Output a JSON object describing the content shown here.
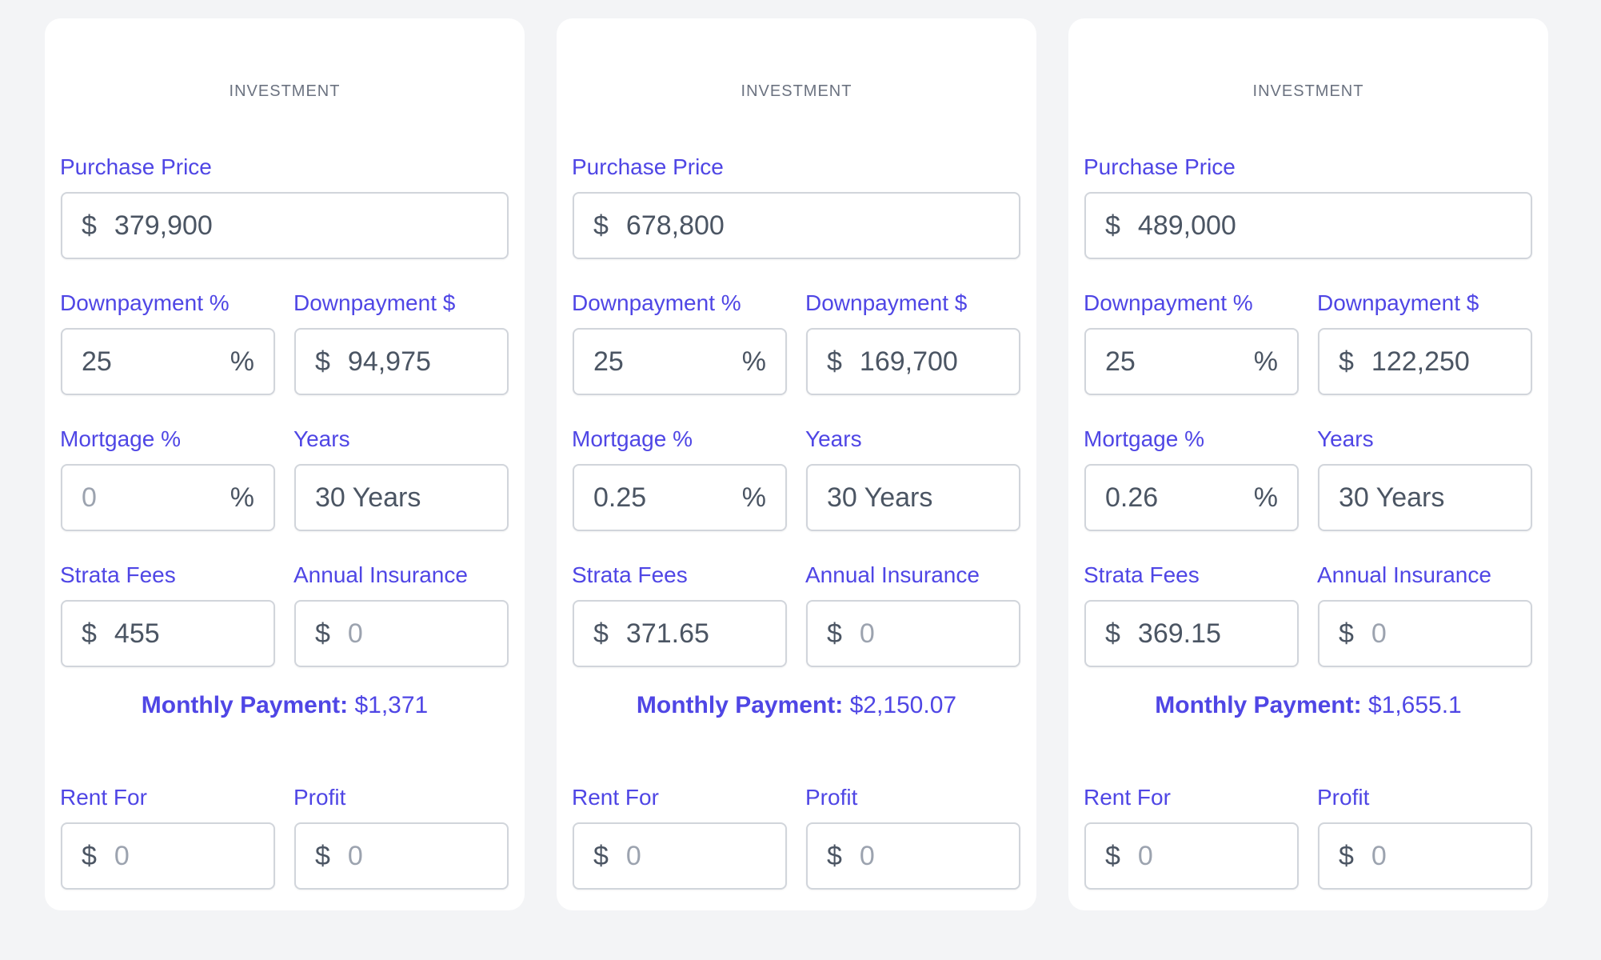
{
  "cards": [
    {
      "title": "INVESTMENT",
      "labels": {
        "purchase_price": "Purchase Price",
        "down_pct": "Downpayment %",
        "down_amt": "Downpayment $",
        "mortgage_pct": "Mortgage %",
        "years": "Years",
        "strata": "Strata Fees",
        "insurance": "Annual Insurance",
        "monthly": "Monthly Payment:",
        "rent": "Rent For",
        "profit": "Profit"
      },
      "symbols": {
        "currency": "$",
        "percent": "%"
      },
      "values": {
        "purchase_price": "379,900",
        "down_pct": "25",
        "down_amt": "94,975",
        "mortgage_pct": "0",
        "years": "30 Years",
        "strata": "455",
        "insurance": "0",
        "monthly": "$1,371",
        "rent": "0",
        "profit": "0"
      }
    },
    {
      "title": "INVESTMENT",
      "labels": {
        "purchase_price": "Purchase Price",
        "down_pct": "Downpayment %",
        "down_amt": "Downpayment $",
        "mortgage_pct": "Mortgage %",
        "years": "Years",
        "strata": "Strata Fees",
        "insurance": "Annual Insurance",
        "monthly": "Monthly Payment:",
        "rent": "Rent For",
        "profit": "Profit"
      },
      "symbols": {
        "currency": "$",
        "percent": "%"
      },
      "values": {
        "purchase_price": "678,800",
        "down_pct": "25",
        "down_amt": "169,700",
        "mortgage_pct": "0.25",
        "years": "30 Years",
        "strata": "371.65",
        "insurance": "0",
        "monthly": "$2,150.07",
        "rent": "0",
        "profit": "0"
      }
    },
    {
      "title": "INVESTMENT",
      "labels": {
        "purchase_price": "Purchase Price",
        "down_pct": "Downpayment %",
        "down_amt": "Downpayment $",
        "mortgage_pct": "Mortgage %",
        "years": "Years",
        "strata": "Strata Fees",
        "insurance": "Annual Insurance",
        "monthly": "Monthly Payment:",
        "rent": "Rent For",
        "profit": "Profit"
      },
      "symbols": {
        "currency": "$",
        "percent": "%"
      },
      "values": {
        "purchase_price": "489,000",
        "down_pct": "25",
        "down_amt": "122,250",
        "mortgage_pct": "0.26",
        "years": "30 Years",
        "strata": "369.15",
        "insurance": "0",
        "monthly": "$1,655.1",
        "rent": "0",
        "profit": "0"
      }
    }
  ]
}
